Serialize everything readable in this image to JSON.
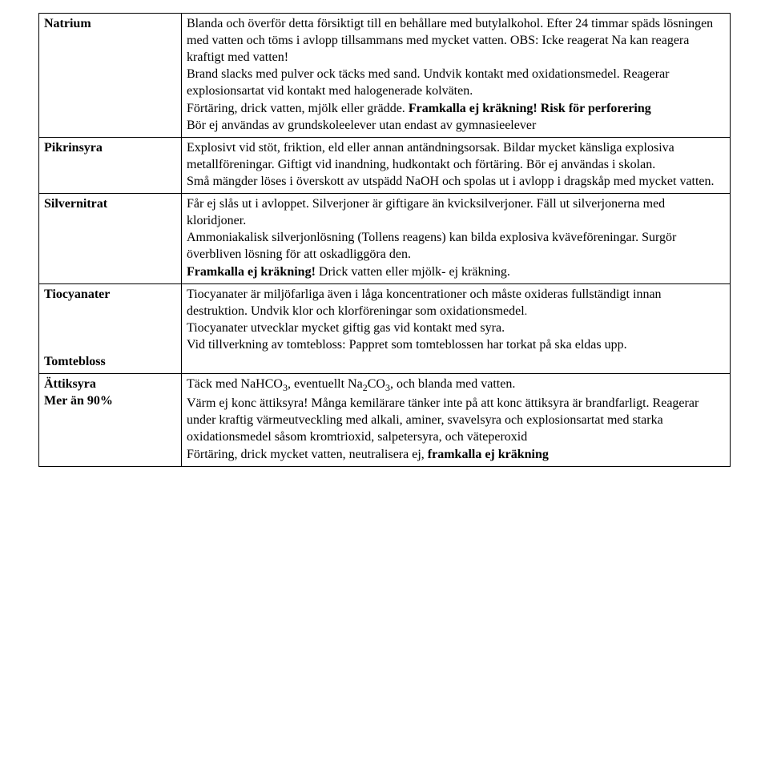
{
  "rows": [
    {
      "label_html": "Natrium",
      "content_html": "Blanda och överför detta försiktigt till en behållare med butylalkohol. Efter 24 timmar späds lösningen med vatten och töms i avlopp tillsammans med mycket vatten. OBS: Icke reagerat Na kan reagera kraftigt med vatten!<br>Brand slacks med pulver ock täcks med sand. Undvik kontakt med oxidationsmedel. Reagerar explosionsartat vid kontakt med halogenerade kolväten.<br>Förtäring, drick vatten, mjölk eller grädde. <span class=\"bold\">Framkalla ej kräkning! Risk för perforering</span><br>Bör ej användas av grundskoleelever utan endast av gymnasieelever"
    },
    {
      "label_html": "Pikrinsyra",
      "content_html": "Explosivt vid stöt, friktion, eld eller annan antändningsorsak. Bildar mycket känsliga explosiva metallföreningar. Giftigt vid inandning, hudkontakt och förtäring. Bör ej användas i skolan.<br>Små mängder löses i överskott av utspädd NaOH och spolas ut i avlopp i dragskåp med mycket vatten."
    },
    {
      "label_html": "Silvernitrat",
      "content_html": "Får ej slås ut i avloppet. Silverjoner är giftigare än kvicksilverjoner. Fäll ut silverjonerna med kloridjoner.<br>Ammoniakalisk silverjonlösning (Tollens reagens) kan bilda explosiva kväveföreningar. Surgör överbliven lösning för att oskadliggöra den.<br><span class=\"bold\">Framkalla ej kräkning!</span> Drick vatten eller mjölk- ej kräkning."
    },
    {
      "label_html": "Tiocyanater<br><br><br><br>Tomtebloss",
      "content_html": "Tiocyanater är miljöfarliga även i låga koncentrationer och måste oxideras fullständigt innan destruktion. Undvik klor och klorföreningar som oxidationsmedel<span class=\"small\">.</span><br>Tiocyanater utvecklar mycket giftig gas vid kontakt med syra.<br>Vid tillverkning av tomtebloss: Pappret som tomteblossen har torkat på ska eldas upp."
    },
    {
      "label_html": "Ättiksyra<br>Mer än 90%",
      "content_html": "Täck med NaHCO<span class=\"sub\">3</span>, eventuellt Na<span class=\"sub\">2</span>CO<span class=\"sub\">3</span>, och blanda med vatten.<br>Värm ej konc ättiksyra! Många kemilärare tänker inte på att konc ättiksyra är brandfarligt. Reagerar under kraftig värmeutveckling med alkali, aminer, svavelsyra och explosionsartat med starka oxidationsmedel såsom kromtrioxid, salpetersyra, och väteperoxid<br>Förtäring, drick mycket vatten, neutralisera ej, <span class=\"bold\">framkalla ej kräkning</span>"
    }
  ]
}
